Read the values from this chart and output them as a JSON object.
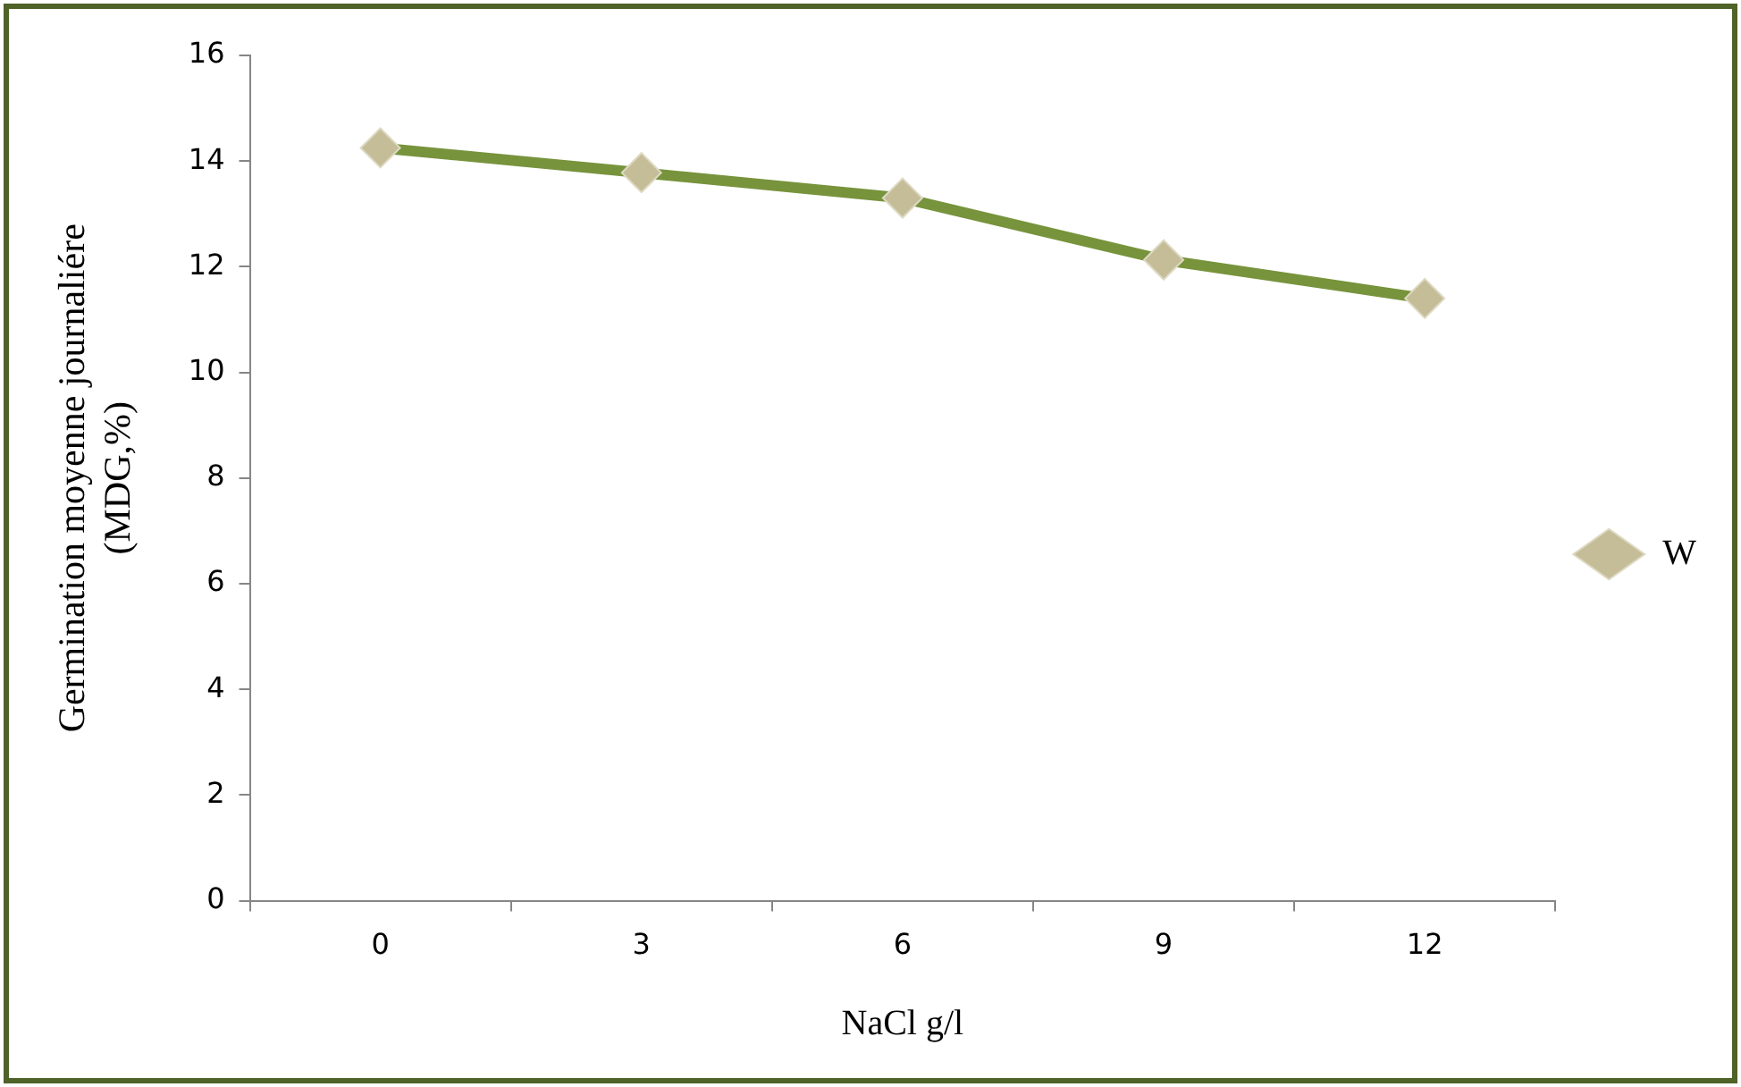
{
  "chart_data": {
    "type": "line",
    "xlabel": "NaCl g/l",
    "ylabel": "Germination moyenne journaliére (MDG,%)",
    "categories": [
      "0",
      "3",
      "6",
      "9",
      "12"
    ],
    "series": [
      {
        "name": "W",
        "color": "#77933c",
        "values": [
          14.25,
          13.78,
          13.3,
          12.13,
          11.4
        ]
      }
    ],
    "ylim": [
      0,
      16
    ],
    "yticks": [
      0,
      2,
      4,
      6,
      8,
      10,
      12,
      14,
      16
    ],
    "grid": false,
    "legend": "right",
    "marker": "diamond",
    "line_style": "solid"
  }
}
